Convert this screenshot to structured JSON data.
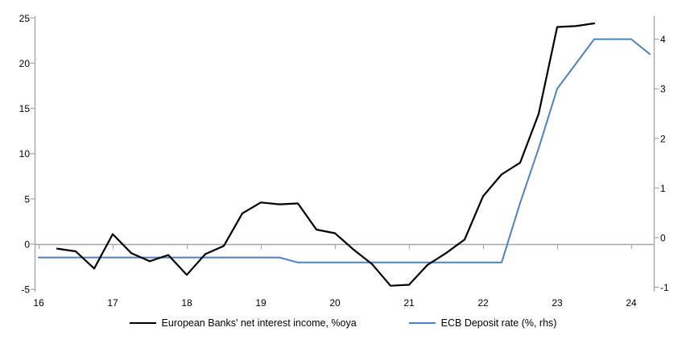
{
  "chart_data": {
    "type": "line",
    "title": "",
    "x_axis": {
      "ticks": [
        "16",
        "17",
        "18",
        "19",
        "20",
        "21",
        "22",
        "23",
        "24"
      ],
      "range": [
        15.95,
        24.45
      ]
    },
    "left_axis": {
      "ticks": [
        -5,
        0,
        5,
        10,
        15,
        20,
        25
      ],
      "range": [
        -5.5,
        25.3
      ]
    },
    "right_axis": {
      "ticks": [
        -1,
        0,
        1,
        2,
        3,
        4
      ],
      "range": [
        -1.15,
        4.6
      ]
    },
    "grid": "zero-line-only",
    "legend_position": "bottom-center",
    "axis_color": "#a6a6a6",
    "text_color": "#000000",
    "series": [
      {
        "name": "European Banks' net interest income, %oya",
        "color": "#000000",
        "axis": "left",
        "x": [
          16.25,
          16.5,
          16.75,
          17.0,
          17.25,
          17.5,
          17.75,
          18.0,
          18.25,
          18.5,
          18.75,
          19.0,
          19.25,
          19.5,
          19.75,
          20.0,
          20.25,
          20.5,
          20.75,
          21.0,
          21.25,
          21.5,
          21.75,
          22.0,
          22.25,
          22.5,
          22.75,
          23.0,
          23.25,
          23.5
        ],
        "y": [
          -0.5,
          -0.8,
          -2.7,
          1.1,
          -1.0,
          -1.9,
          -1.2,
          -3.4,
          -1.1,
          -0.2,
          3.4,
          4.6,
          4.4,
          4.5,
          1.6,
          1.2,
          -0.6,
          -2.2,
          -4.6,
          -4.5,
          -2.3,
          -1.0,
          0.5,
          5.3,
          7.7,
          9.0,
          14.4,
          24.0,
          24.1,
          24.4
        ]
      },
      {
        "name": "ECB Deposit rate (%, rhs)",
        "color": "#4f81bd",
        "axis": "right",
        "x": [
          16.0,
          16.25,
          16.5,
          16.75,
          17.0,
          17.25,
          17.5,
          17.75,
          18.0,
          18.25,
          18.5,
          18.75,
          19.0,
          19.25,
          19.5,
          19.75,
          20.0,
          20.25,
          20.5,
          20.75,
          21.0,
          21.25,
          21.5,
          21.75,
          22.0,
          22.25,
          22.5,
          22.75,
          23.0,
          23.25,
          23.5,
          23.75,
          24.0,
          24.25
        ],
        "y": [
          -0.4,
          -0.4,
          -0.4,
          -0.4,
          -0.4,
          -0.4,
          -0.4,
          -0.4,
          -0.4,
          -0.4,
          -0.4,
          -0.4,
          -0.4,
          -0.4,
          -0.5,
          -0.5,
          -0.5,
          -0.5,
          -0.5,
          -0.5,
          -0.5,
          -0.5,
          -0.5,
          -0.5,
          -0.5,
          -0.5,
          0.7,
          1.8,
          3.0,
          3.5,
          4.0,
          4.0,
          4.0,
          3.7
        ]
      }
    ]
  },
  "legend": {
    "items": [
      {
        "label": "European Banks' net interest income, %oya"
      },
      {
        "label": "ECB Deposit rate (%, rhs)"
      }
    ]
  }
}
